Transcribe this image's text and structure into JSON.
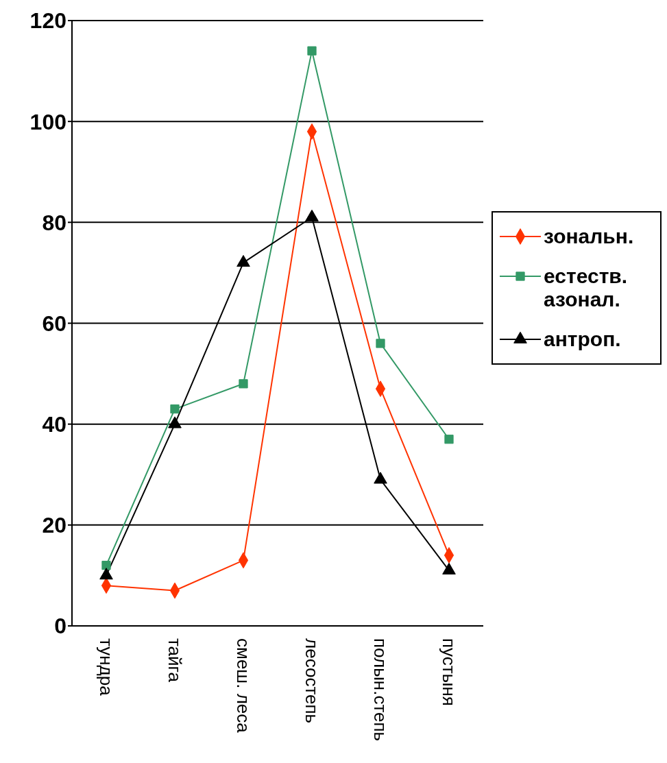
{
  "chart_data": {
    "type": "line",
    "categories": [
      "тундра",
      "тайга",
      "смеш. леса",
      "лесостепь",
      "полын.степь",
      "пустыня"
    ],
    "series": [
      {
        "name": "зональн.",
        "color": "#ff3300",
        "marker": "diamond",
        "values": [
          8,
          7,
          13,
          98,
          47,
          14
        ]
      },
      {
        "name": "естеств. азонал.",
        "color": "#339966",
        "marker": "square",
        "values": [
          12,
          43,
          48,
          114,
          56,
          37
        ]
      },
      {
        "name": "антроп.",
        "color": "#000000",
        "marker": "triangle",
        "values": [
          10,
          40,
          72,
          81,
          29,
          11
        ]
      }
    ],
    "ylim": [
      0,
      120
    ],
    "yticks": [
      0,
      20,
      40,
      60,
      80,
      100,
      120
    ],
    "grid": "y",
    "legend": "right",
    "line_style": "solid"
  }
}
